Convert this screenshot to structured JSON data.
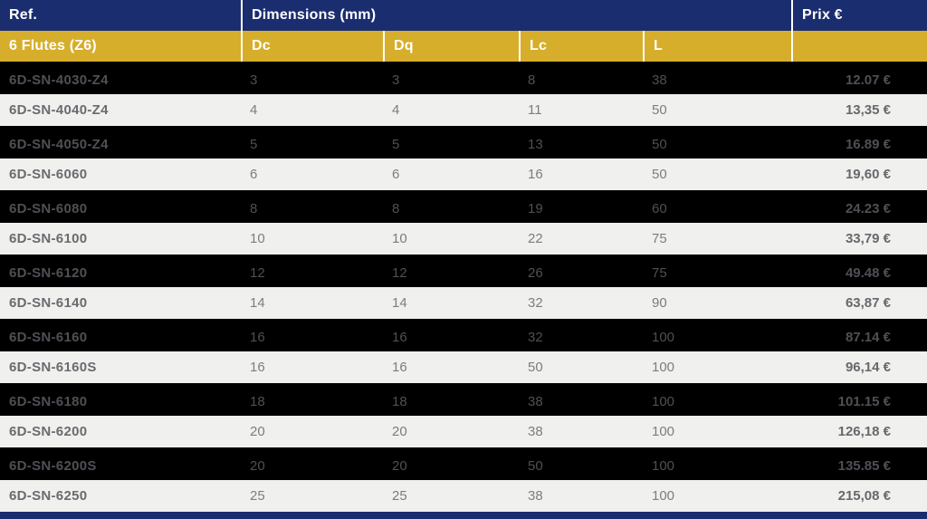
{
  "colors": {
    "header_navy": "#1a2d6e",
    "header_gold": "#d6ae2c",
    "row_dark": "#000000",
    "row_light": "#f0f0ee",
    "header_text": "#ffffff"
  },
  "table": {
    "header": {
      "ref": "Ref.",
      "dimensions": "Dimensions (mm)",
      "prix": "Prix €"
    },
    "subheader": {
      "ref": "6 Flutes (Z6)",
      "dc": "Dc",
      "dq": "Dq",
      "lc": "Lc",
      "l": "L",
      "prix": ""
    },
    "rows": [
      {
        "ref": "6D-SN-4030-Z4",
        "dc": "3",
        "dq": "3",
        "lc": "8",
        "l": "38",
        "prix": "12,07 €",
        "shade": "dark"
      },
      {
        "ref": "6D-SN-4040-Z4",
        "dc": "4",
        "dq": "4",
        "lc": "11",
        "l": "50",
        "prix": "13,35 €",
        "shade": "light"
      },
      {
        "ref": "6D-SN-4050-Z4",
        "dc": "5",
        "dq": "5",
        "lc": "13",
        "l": "50",
        "prix": "16,89 €",
        "shade": "dark"
      },
      {
        "ref": "6D-SN-6060",
        "dc": "6",
        "dq": "6",
        "lc": "16",
        "l": "50",
        "prix": "19,60 €",
        "shade": "light"
      },
      {
        "ref": "6D-SN-6080",
        "dc": "8",
        "dq": "8",
        "lc": "19",
        "l": "60",
        "prix": "24,23 €",
        "shade": "dark"
      },
      {
        "ref": "6D-SN-6100",
        "dc": "10",
        "dq": "10",
        "lc": "22",
        "l": "75",
        "prix": "33,79 €",
        "shade": "light"
      },
      {
        "ref": "6D-SN-6120",
        "dc": "12",
        "dq": "12",
        "lc": "26",
        "l": "75",
        "prix": "49,48 €",
        "shade": "dark"
      },
      {
        "ref": "6D-SN-6140",
        "dc": "14",
        "dq": "14",
        "lc": "32",
        "l": "90",
        "prix": "63,87 €",
        "shade": "light"
      },
      {
        "ref": "6D-SN-6160",
        "dc": "16",
        "dq": "16",
        "lc": "32",
        "l": "100",
        "prix": "87,14 €",
        "shade": "dark"
      },
      {
        "ref": "6D-SN-6160S",
        "dc": "16",
        "dq": "16",
        "lc": "50",
        "l": "100",
        "prix": "96,14 €",
        "shade": "light"
      },
      {
        "ref": "6D-SN-6180",
        "dc": "18",
        "dq": "18",
        "lc": "38",
        "l": "100",
        "prix": "101,15 €",
        "shade": "dark"
      },
      {
        "ref": "6D-SN-6200",
        "dc": "20",
        "dq": "20",
        "lc": "38",
        "l": "100",
        "prix": "126,18 €",
        "shade": "light"
      },
      {
        "ref": "6D-SN-6200S",
        "dc": "20",
        "dq": "20",
        "lc": "50",
        "l": "100",
        "prix": "135,85 €",
        "shade": "dark"
      },
      {
        "ref": "6D-SN-6250",
        "dc": "25",
        "dq": "25",
        "lc": "38",
        "l": "100",
        "prix": "215,08 €",
        "shade": "light"
      }
    ]
  }
}
